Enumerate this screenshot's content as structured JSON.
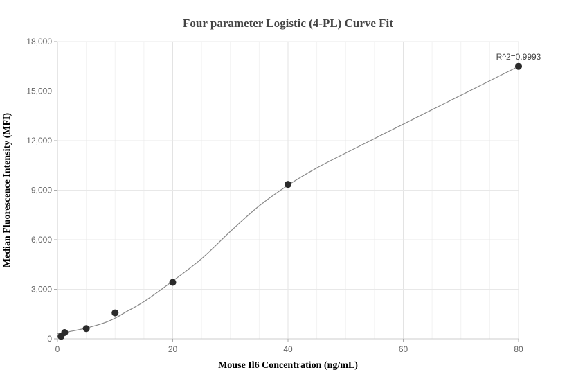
{
  "chart_data": {
    "type": "scatter",
    "title": "Four parameter Logistic (4-PL) Curve Fit",
    "xlabel": "Mouse Il6 Concentration (ng/mL)",
    "ylabel": "Median Fluorescence Intensity (MFI)",
    "xlim": [
      0,
      80
    ],
    "ylim": [
      0,
      18000
    ],
    "xticks": [
      0,
      20,
      40,
      60,
      80
    ],
    "xtick_labels": [
      "0",
      "20",
      "40",
      "60",
      "80"
    ],
    "yticks": [
      0,
      3000,
      6000,
      9000,
      12000,
      15000,
      18000
    ],
    "ytick_labels": [
      "0",
      "3,000",
      "6,000",
      "9,000",
      "12,000",
      "15,000",
      "18,000"
    ],
    "grid": true,
    "points": [
      {
        "x": 0.625,
        "y": 150
      },
      {
        "x": 1.25,
        "y": 380
      },
      {
        "x": 5,
        "y": 620
      },
      {
        "x": 10,
        "y": 1570
      },
      {
        "x": 20,
        "y": 3420
      },
      {
        "x": 40,
        "y": 9350
      },
      {
        "x": 80,
        "y": 16500
      }
    ],
    "fit_curve": [
      {
        "x": 0,
        "y": 300
      },
      {
        "x": 2,
        "y": 430
      },
      {
        "x": 5,
        "y": 650
      },
      {
        "x": 8,
        "y": 950
      },
      {
        "x": 10,
        "y": 1250
      },
      {
        "x": 12,
        "y": 1650
      },
      {
        "x": 15,
        "y": 2250
      },
      {
        "x": 20,
        "y": 3500
      },
      {
        "x": 25,
        "y": 4850
      },
      {
        "x": 30,
        "y": 6500
      },
      {
        "x": 35,
        "y": 8050
      },
      {
        "x": 40,
        "y": 9300
      },
      {
        "x": 45,
        "y": 10350
      },
      {
        "x": 50,
        "y": 11250
      },
      {
        "x": 60,
        "y": 13000
      },
      {
        "x": 70,
        "y": 14750
      },
      {
        "x": 80,
        "y": 16500
      }
    ],
    "annotation": "R^2=0.9993",
    "colors": {
      "points": "#2b2b2b",
      "curve": "#888888",
      "grid": "#e8e8e8",
      "axis": "#cccccc"
    }
  }
}
